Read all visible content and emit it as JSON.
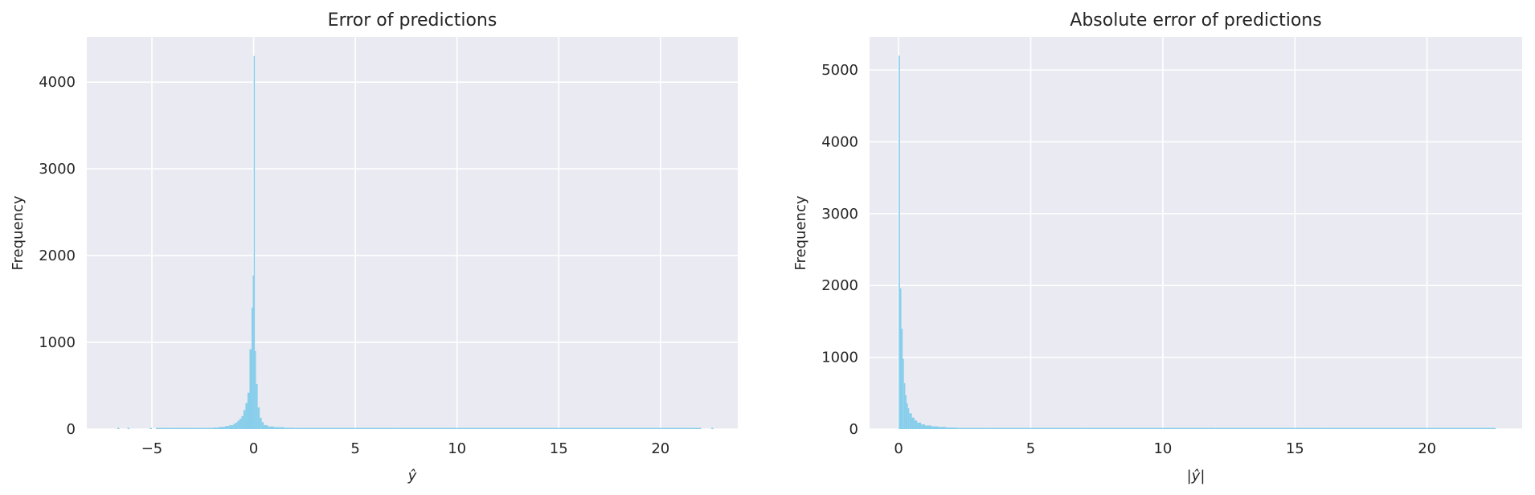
{
  "colors": {
    "plot_background": "#eaeaf2",
    "grid": "#ffffff",
    "bars": "#87ceeb",
    "text": "#262626"
  },
  "chart_data": [
    {
      "type": "histogram",
      "title": "Error of predictions",
      "xlabel": "ŷ",
      "ylabel": "Frequency",
      "xlim": [
        -8.2,
        23.8
      ],
      "ylim": [
        0,
        4520
      ],
      "xticks": [
        -5,
        0,
        5,
        10,
        15,
        20
      ],
      "xtick_labels": [
        "−5",
        "0",
        "5",
        "10",
        "15",
        "20"
      ],
      "yticks": [
        0,
        1000,
        2000,
        3000,
        4000
      ],
      "ytick_labels": [
        "0",
        "1000",
        "2000",
        "3000",
        "4000"
      ],
      "grid": true,
      "bar_color": "#87ceeb",
      "bins": [
        {
          "x0": -6.7,
          "x1": -6.6,
          "count": 3
        },
        {
          "x0": -6.2,
          "x1": -6.1,
          "count": 2
        },
        {
          "x0": -5.1,
          "x1": -5.0,
          "count": 3
        },
        {
          "x0": -4.8,
          "x1": -4.0,
          "count": 4
        },
        {
          "x0": -4.0,
          "x1": -3.0,
          "count": 5
        },
        {
          "x0": -3.0,
          "x1": -2.4,
          "count": 8
        },
        {
          "x0": -2.4,
          "x1": -2.0,
          "count": 12
        },
        {
          "x0": -2.0,
          "x1": -1.7,
          "count": 18
        },
        {
          "x0": -1.7,
          "x1": -1.4,
          "count": 25
        },
        {
          "x0": -1.4,
          "x1": -1.2,
          "count": 35
        },
        {
          "x0": -1.2,
          "x1": -1.0,
          "count": 45
        },
        {
          "x0": -1.0,
          "x1": -0.9,
          "count": 60
        },
        {
          "x0": -0.9,
          "x1": -0.8,
          "count": 75
        },
        {
          "x0": -0.8,
          "x1": -0.7,
          "count": 95
        },
        {
          "x0": -0.7,
          "x1": -0.6,
          "count": 120
        },
        {
          "x0": -0.6,
          "x1": -0.5,
          "count": 150
        },
        {
          "x0": -0.5,
          "x1": -0.4,
          "count": 220
        },
        {
          "x0": -0.4,
          "x1": -0.3,
          "count": 300
        },
        {
          "x0": -0.3,
          "x1": -0.2,
          "count": 420
        },
        {
          "x0": -0.2,
          "x1": -0.1,
          "count": 920
        },
        {
          "x0": -0.1,
          "x1": -0.04,
          "count": 1400
        },
        {
          "x0": -0.04,
          "x1": 0.0,
          "count": 1770
        },
        {
          "x0": 0.0,
          "x1": 0.06,
          "count": 4300
        },
        {
          "x0": 0.06,
          "x1": 0.12,
          "count": 900
        },
        {
          "x0": 0.12,
          "x1": 0.2,
          "count": 520
        },
        {
          "x0": 0.2,
          "x1": 0.3,
          "count": 250
        },
        {
          "x0": 0.3,
          "x1": 0.4,
          "count": 130
        },
        {
          "x0": 0.4,
          "x1": 0.5,
          "count": 80
        },
        {
          "x0": 0.5,
          "x1": 0.7,
          "count": 45
        },
        {
          "x0": 0.7,
          "x1": 1.0,
          "count": 30
        },
        {
          "x0": 1.0,
          "x1": 1.5,
          "count": 22
        },
        {
          "x0": 1.5,
          "x1": 2.0,
          "count": 15
        },
        {
          "x0": 2.0,
          "x1": 3.0,
          "count": 10
        },
        {
          "x0": 3.0,
          "x1": 5.0,
          "count": 6
        },
        {
          "x0": 5.0,
          "x1": 7.0,
          "count": 4
        },
        {
          "x0": 7.0,
          "x1": 10.0,
          "count": 3
        },
        {
          "x0": 10.0,
          "x1": 13.0,
          "count": 2
        },
        {
          "x0": 13.0,
          "x1": 16.0,
          "count": 2
        },
        {
          "x0": 16.0,
          "x1": 19.0,
          "count": 2
        },
        {
          "x0": 19.0,
          "x1": 22.0,
          "count": 1
        },
        {
          "x0": 22.5,
          "x1": 22.6,
          "count": 2
        }
      ]
    },
    {
      "type": "histogram",
      "title": "Absolute error of predictions",
      "xlabel": "|ŷ|",
      "ylabel": "Frequency",
      "xlim": [
        -1.1,
        23.6
      ],
      "ylim": [
        0,
        5460
      ],
      "xticks": [
        0,
        5,
        10,
        15,
        20
      ],
      "xtick_labels": [
        "0",
        "5",
        "10",
        "15",
        "20"
      ],
      "yticks": [
        0,
        1000,
        2000,
        3000,
        4000,
        5000
      ],
      "ytick_labels": [
        "0",
        "1000",
        "2000",
        "3000",
        "4000",
        "5000"
      ],
      "grid": true,
      "bar_color": "#87ceeb",
      "bins": [
        {
          "x0": 0.0,
          "x1": 0.05,
          "count": 5200
        },
        {
          "x0": 0.05,
          "x1": 0.1,
          "count": 1960
        },
        {
          "x0": 0.1,
          "x1": 0.15,
          "count": 1400
        },
        {
          "x0": 0.15,
          "x1": 0.2,
          "count": 980
        },
        {
          "x0": 0.2,
          "x1": 0.25,
          "count": 640
        },
        {
          "x0": 0.25,
          "x1": 0.3,
          "count": 470
        },
        {
          "x0": 0.3,
          "x1": 0.35,
          "count": 360
        },
        {
          "x0": 0.35,
          "x1": 0.4,
          "count": 290
        },
        {
          "x0": 0.4,
          "x1": 0.5,
          "count": 220
        },
        {
          "x0": 0.5,
          "x1": 0.6,
          "count": 160
        },
        {
          "x0": 0.6,
          "x1": 0.7,
          "count": 120
        },
        {
          "x0": 0.7,
          "x1": 0.85,
          "count": 90
        },
        {
          "x0": 0.85,
          "x1": 1.0,
          "count": 65
        },
        {
          "x0": 1.0,
          "x1": 1.25,
          "count": 50
        },
        {
          "x0": 1.25,
          "x1": 1.5,
          "count": 38
        },
        {
          "x0": 1.5,
          "x1": 1.8,
          "count": 30
        },
        {
          "x0": 1.8,
          "x1": 2.2,
          "count": 22
        },
        {
          "x0": 2.2,
          "x1": 2.7,
          "count": 15
        },
        {
          "x0": 2.7,
          "x1": 3.5,
          "count": 10
        },
        {
          "x0": 3.5,
          "x1": 5.0,
          "count": 6
        },
        {
          "x0": 5.0,
          "x1": 7.0,
          "count": 4
        },
        {
          "x0": 7.0,
          "x1": 9.5,
          "count": 3
        },
        {
          "x0": 9.5,
          "x1": 12.0,
          "count": 2
        },
        {
          "x0": 12.0,
          "x1": 16.0,
          "count": 1
        },
        {
          "x0": 16.0,
          "x1": 20.0,
          "count": 1
        },
        {
          "x0": 20.0,
          "x1": 22.6,
          "count": 1
        }
      ]
    }
  ]
}
